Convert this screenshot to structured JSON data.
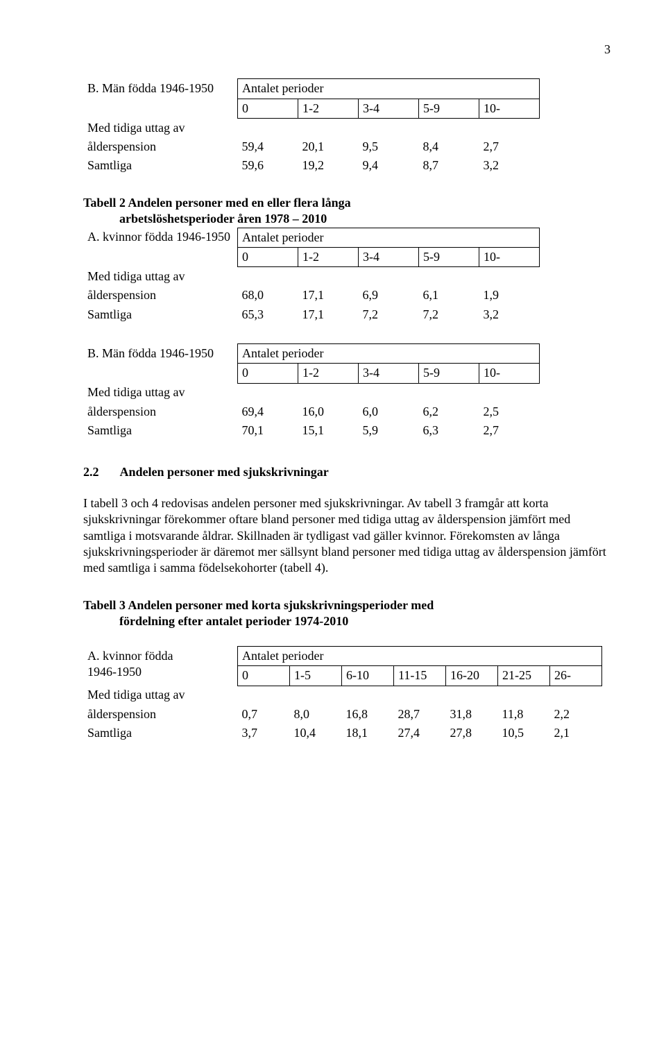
{
  "page_number": "3",
  "table_b1": {
    "title_row_label": "B. Män födda 1946-1950",
    "antalet_perioder_label": "Antalet perioder",
    "header": [
      "0",
      "1-2",
      "3-4",
      "5-9",
      "10-"
    ],
    "rows": [
      {
        "label_line1": "Med tidiga uttag av",
        "label_line2": "ålderspension",
        "values": [
          "59,4",
          "20,1",
          "9,5",
          "8,4",
          "2,7"
        ]
      },
      {
        "label_line1": "Samtliga",
        "label_line2": "",
        "values": [
          "59,6",
          "19,2",
          "9,4",
          "8,7",
          "3,2"
        ]
      }
    ]
  },
  "table2_title_line1": "Tabell 2 Andelen personer med en eller flera långa",
  "table2_title_line2": "arbetslöshetsperioder åren 1978 – 2010",
  "table_a2": {
    "title_row_label": "A. kvinnor födda 1946-1950",
    "antalet_perioder_label": "Antalet perioder",
    "header": [
      "0",
      "1-2",
      "3-4",
      "5-9",
      "10-"
    ],
    "rows": [
      {
        "label_line1": "Med tidiga uttag av",
        "label_line2": "ålderspension",
        "values": [
          "68,0",
          "17,1",
          "6,9",
          "6,1",
          "1,9"
        ]
      },
      {
        "label_line1": "Samtliga",
        "label_line2": "",
        "values": [
          "65,3",
          "17,1",
          "7,2",
          "7,2",
          "3,2"
        ]
      }
    ]
  },
  "table_b2": {
    "title_row_label": "B. Män födda 1946-1950",
    "antalet_perioder_label": "Antalet perioder",
    "header": [
      "0",
      "1-2",
      "3-4",
      "5-9",
      "10-"
    ],
    "rows": [
      {
        "label_line1": "Med tidiga uttag av",
        "label_line2": "ålderspension",
        "values": [
          "69,4",
          "16,0",
          "6,0",
          "6,2",
          "2,5"
        ]
      },
      {
        "label_line1": "Samtliga",
        "label_line2": "",
        "values": [
          "70,1",
          "15,1",
          "5,9",
          "6,3",
          "2,7"
        ]
      }
    ]
  },
  "section22_num": "2.2",
  "section22_title": "Andelen personer med sjukskrivningar",
  "body22": "I tabell 3 och 4 redovisas andelen personer med sjukskrivningar. Av tabell 3 framgår att korta sjukskrivningar förekommer oftare bland personer med tidiga uttag av ålderspension jämfört med samtliga i motsvarande åldrar. Skillnaden är tydligast vad gäller kvinnor. Förekomsten av långa sjukskrivningsperioder är däremot mer sällsynt bland personer med tidiga uttag av ålderspension jämfört med samtliga i samma födelsekohorter (tabell 4).",
  "table3_title_line1": "Tabell 3 Andelen personer med korta sjukskrivningsperioder med",
  "table3_title_line2": "fördelning efter antalet perioder 1974-2010",
  "table_a3": {
    "title_row_label_line1": "A. kvinnor födda",
    "title_row_label_line2": "1946-1950",
    "antalet_perioder_label": "Antalet perioder",
    "header": [
      "0",
      "1-5",
      "6-10",
      "11-15",
      "16-20",
      "21-25",
      "26-"
    ],
    "rows": [
      {
        "label_line1": "Med tidiga uttag av",
        "label_line2": "ålderspension",
        "values": [
          "0,7",
          "8,0",
          "16,8",
          "28,7",
          "31,8",
          "11,8",
          "2,2"
        ]
      },
      {
        "label_line1": "Samtliga",
        "label_line2": "",
        "values": [
          "3,7",
          "10,4",
          "18,1",
          "27,4",
          "27,8",
          "10,5",
          "2,1"
        ]
      }
    ]
  }
}
